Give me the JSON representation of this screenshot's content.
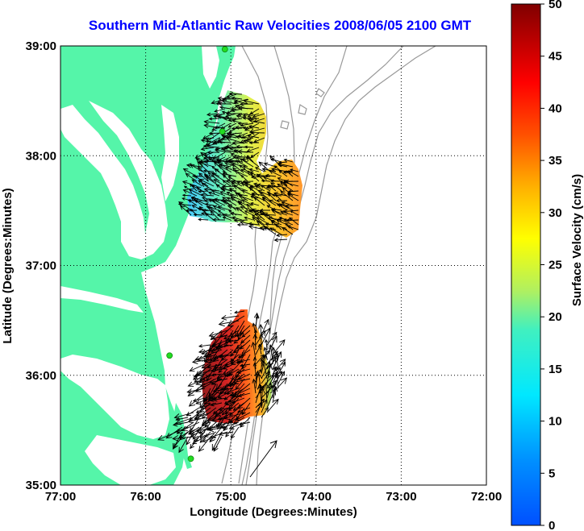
{
  "title": "Southern Mid-Atlantic Raw Velocities 2008/06/05 2100 GMT",
  "axes": {
    "xlabel": "Longitude (Degrees:Minutes)",
    "ylabel": "Latitude (Degrees:Minutes)",
    "x_ticks": [
      "77:00",
      "76:00",
      "75:00",
      "74:00",
      "73:00",
      "72:00"
    ],
    "y_ticks": [
      "39:00",
      "38:00",
      "37:00",
      "36:00",
      "35:00"
    ],
    "x_range": [
      -77,
      -72
    ],
    "y_range": [
      35,
      39
    ]
  },
  "colorbar": {
    "label": "Surface Velocity (cm/s)",
    "ticks": [
      "0",
      "5",
      "10",
      "15",
      "20",
      "25",
      "30",
      "35",
      "40",
      "45",
      "50"
    ],
    "range": [
      0,
      50
    ]
  },
  "colors": {
    "land": "#55f5a9",
    "title": "#0000ff",
    "vectors": "#000000",
    "contours": "#999999",
    "stations": "#22dd22"
  },
  "stations": [
    {
      "lon": -75.07,
      "lat": 38.97
    },
    {
      "lon": -75.1,
      "lat": 38.22
    },
    {
      "lon": -75.72,
      "lat": 36.18
    },
    {
      "lon": -75.47,
      "lat": 35.24
    }
  ]
}
